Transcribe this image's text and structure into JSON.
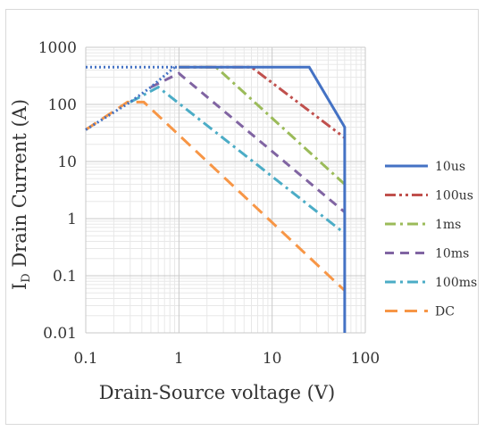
{
  "chart_data": {
    "type": "line",
    "title": "",
    "xlabel": "Drain-Source voltage (V)",
    "ylabel_sub": "I",
    "ylabel_subscript": "D",
    "ylabel_rest": " Drain Current (A)",
    "x_scale": "log",
    "y_scale": "log",
    "xlim": [
      0.1,
      100
    ],
    "ylim": [
      0.01,
      1000
    ],
    "x_ticks": [
      0.1,
      1,
      10,
      100
    ],
    "x_tick_labels": [
      "0.1",
      "1",
      "10",
      "100"
    ],
    "y_ticks": [
      0.01,
      0.1,
      1,
      10,
      100,
      1000
    ],
    "y_tick_labels": [
      "0.01",
      "0.1",
      "1",
      "10",
      "100",
      "1000"
    ],
    "grid": true,
    "legend_position": "right",
    "limit_line": {
      "x": [
        0.1,
        0.3,
        0.5,
        0.9
      ],
      "y": [
        36,
        110,
        200,
        450
      ],
      "color": "#4472C4",
      "dash": "dotted"
    },
    "rdson_hline": {
      "x": [
        0.1,
        1.0
      ],
      "y": [
        450,
        450
      ],
      "color": "#4472C4",
      "dash": "dotted"
    },
    "series": [
      {
        "name": "10us",
        "color": "#4472C4",
        "dash": "solid",
        "x": [
          1.0,
          25,
          60,
          60
        ],
        "y": [
          450,
          450,
          40,
          0.01
        ]
      },
      {
        "name": "100us",
        "color": "#C0504D",
        "dash": "dashdotdot",
        "x": [
          1.0,
          6,
          60
        ],
        "y": [
          450,
          450,
          26
        ]
      },
      {
        "name": "1ms",
        "color": "#9BBB59",
        "dash": "dashdot",
        "x": [
          1.0,
          2.5,
          60
        ],
        "y": [
          450,
          450,
          4
        ]
      },
      {
        "name": "10ms",
        "color": "#8064A2",
        "dash": "dash",
        "x": [
          0.5,
          1.0,
          60
        ],
        "y": [
          200,
          350,
          1.3
        ]
      },
      {
        "name": "100ms",
        "color": "#4BACC6",
        "dash": "dashdot",
        "x": [
          0.3,
          0.6,
          60
        ],
        "y": [
          110,
          200,
          0.55
        ]
      },
      {
        "name": "DC",
        "color": "#F79646",
        "dash": "longdash",
        "x": [
          0.1,
          0.28,
          0.42,
          60
        ],
        "y": [
          36,
          110,
          110,
          0.055
        ]
      }
    ]
  }
}
